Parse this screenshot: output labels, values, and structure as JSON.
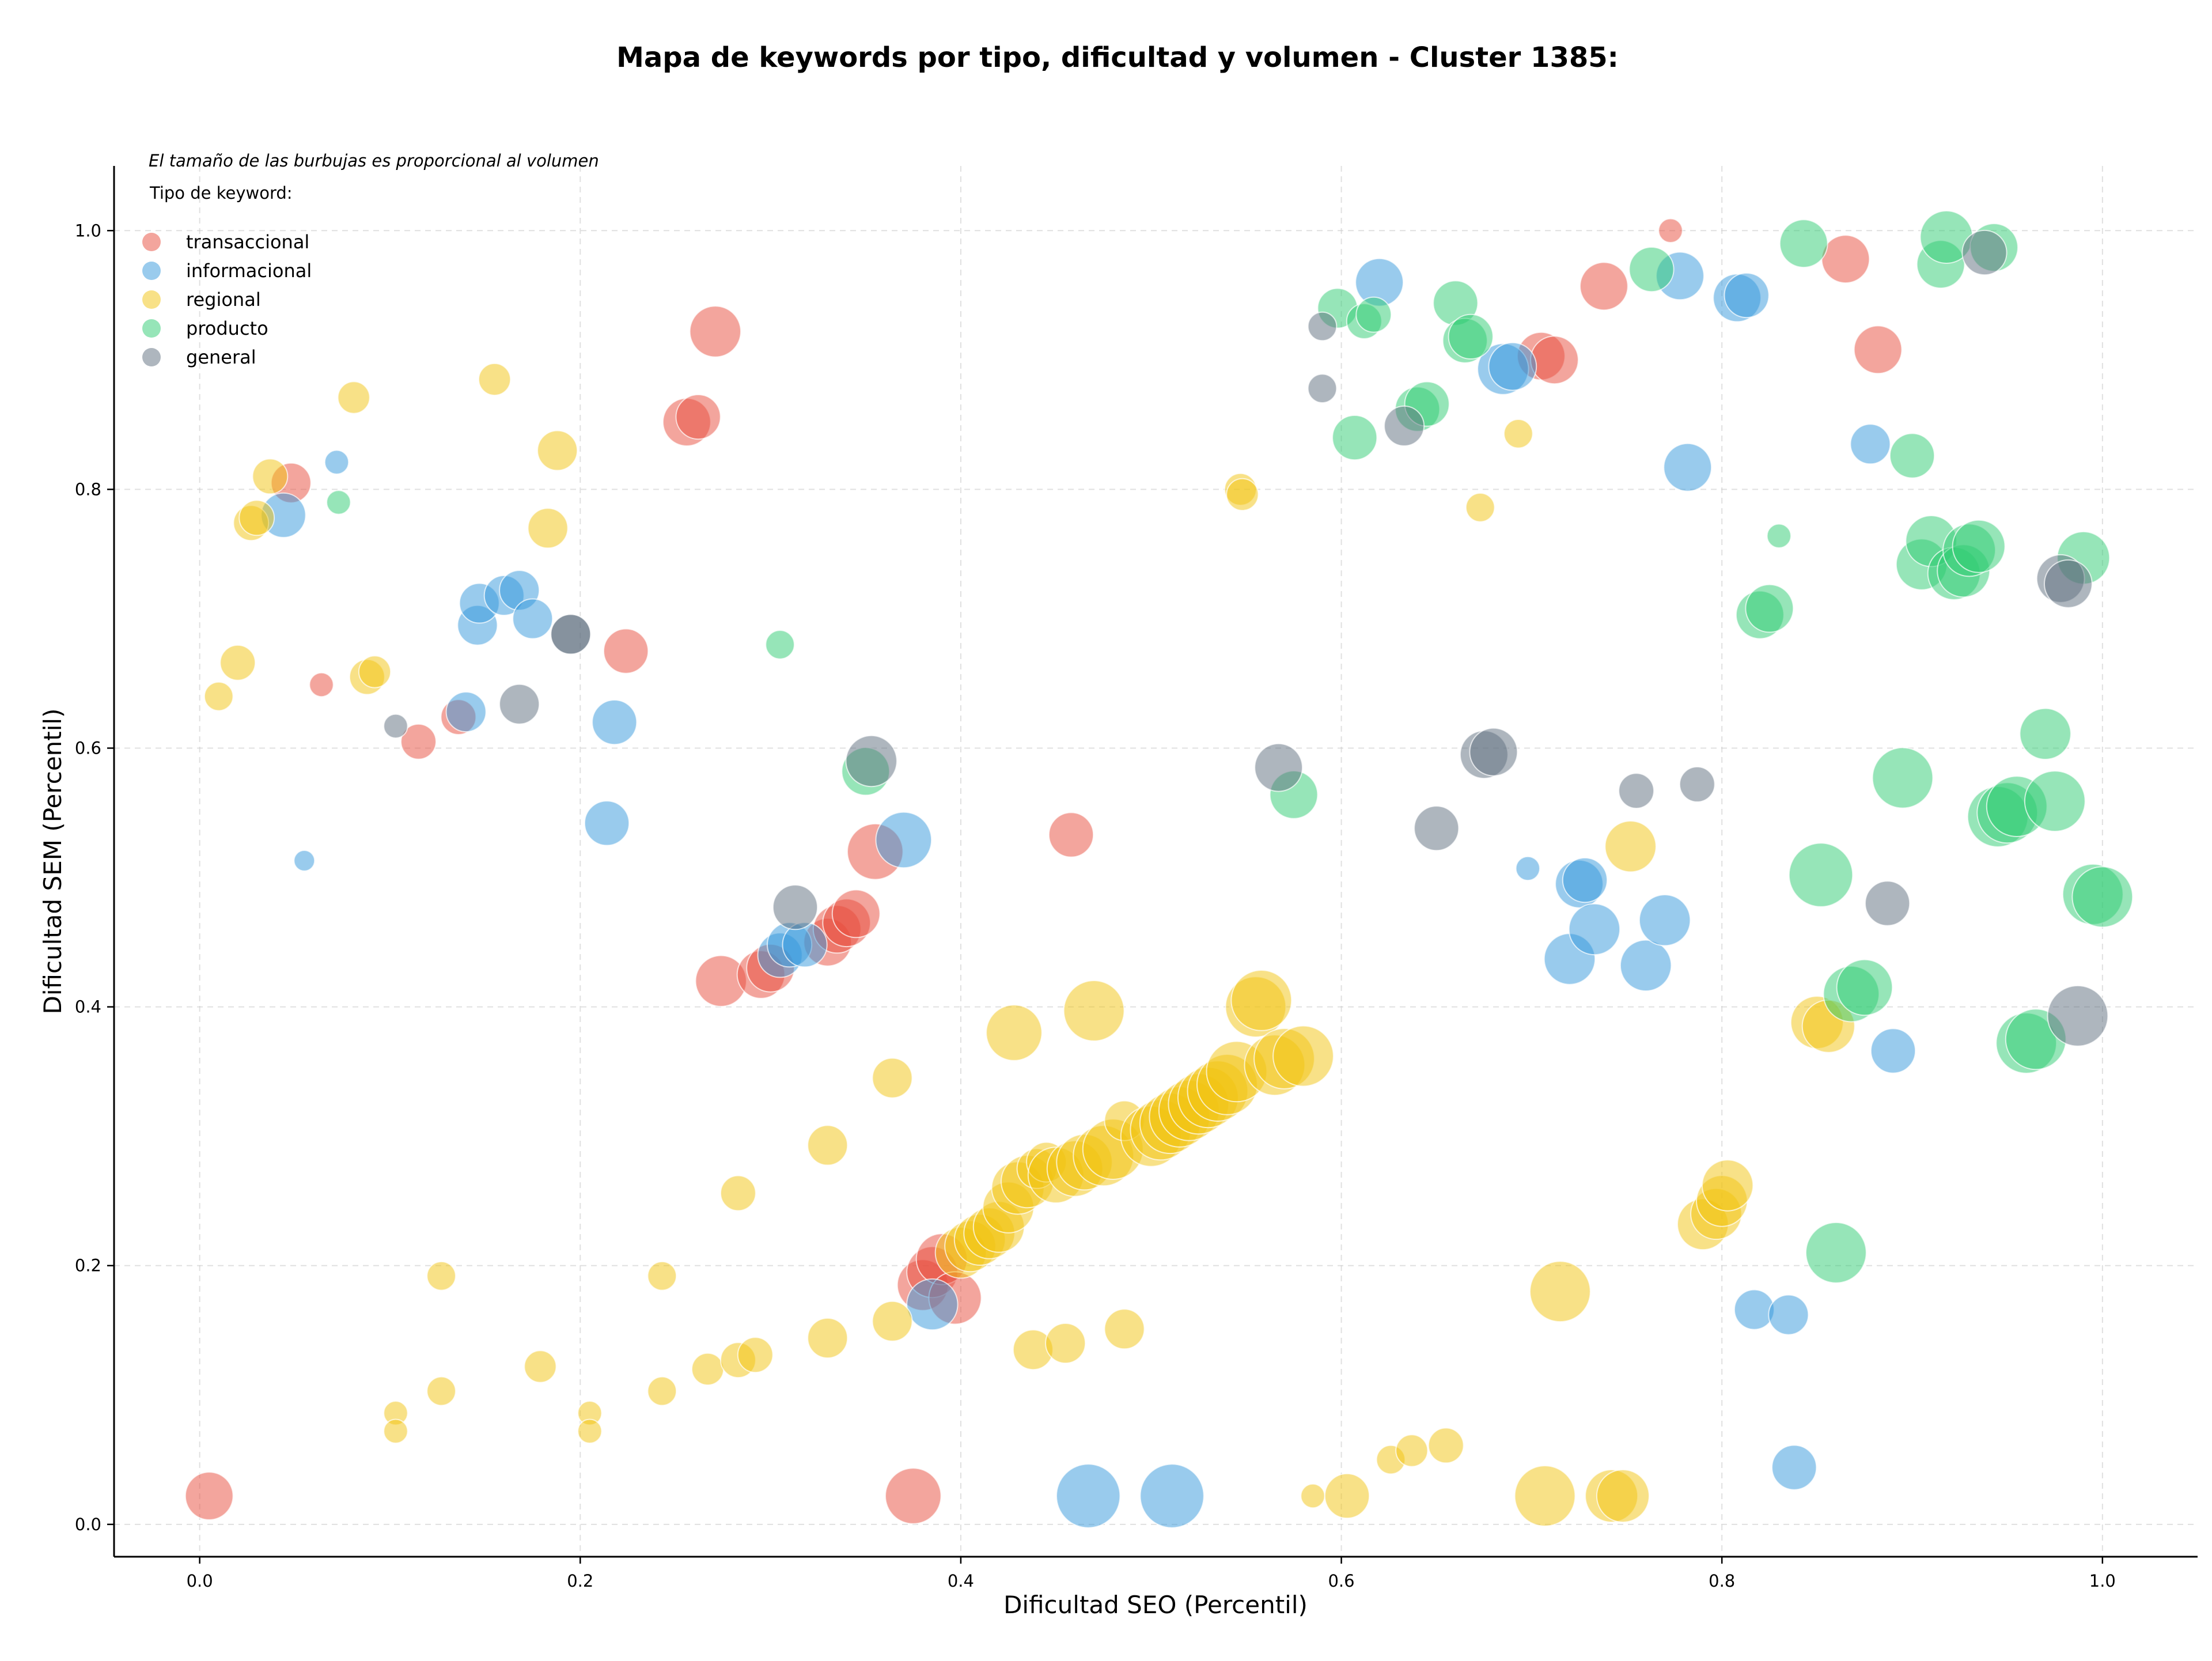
{
  "chart_data": {
    "type": "scatter",
    "title": "Mapa de keywords por tipo, dificultad y volumen - Cluster 1385:",
    "xlabel": "Dificultad SEO (Percentil)",
    "ylabel": "Dificultad SEM (Percentil)",
    "xlim": [
      -0.045,
      1.05
    ],
    "ylim": [
      -0.025,
      1.05
    ],
    "xticks": [
      0.0,
      0.2,
      0.4,
      0.6,
      0.8,
      1.0
    ],
    "yticks": [
      0.0,
      0.2,
      0.4,
      0.6,
      0.8,
      1.0
    ],
    "xtick_labels": [
      "0.0",
      "0.2",
      "0.4",
      "0.6",
      "0.8",
      "1.0"
    ],
    "ytick_labels": [
      "0.0",
      "0.2",
      "0.4",
      "0.6",
      "0.8",
      "1.0"
    ],
    "grid": true,
    "legend": {
      "placement": "top-left",
      "note": "El tamaño de las burbujas es proporcional al volumen",
      "heading": "Tipo de keyword:",
      "entries": [
        "transaccional",
        "informacional",
        "regional",
        "producto",
        "general"
      ]
    },
    "series": [
      {
        "name": "transaccional",
        "color": "#e74c3c",
        "points": [
          [
            0.005,
            0.022,
            30
          ],
          [
            0.048,
            0.805,
            25
          ],
          [
            0.064,
            0.649,
            15
          ],
          [
            0.115,
            0.605,
            22
          ],
          [
            0.136,
            0.624,
            22
          ],
          [
            0.224,
            0.675,
            28
          ],
          [
            0.256,
            0.852,
            30
          ],
          [
            0.262,
            0.856,
            28
          ],
          [
            0.271,
            0.922,
            32
          ],
          [
            0.274,
            0.42,
            32
          ],
          [
            0.295,
            0.425,
            30
          ],
          [
            0.3,
            0.43,
            30
          ],
          [
            0.33,
            0.45,
            30
          ],
          [
            0.335,
            0.46,
            30
          ],
          [
            0.34,
            0.465,
            30
          ],
          [
            0.345,
            0.472,
            30
          ],
          [
            0.355,
            0.52,
            35
          ],
          [
            0.375,
            0.022,
            35
          ],
          [
            0.38,
            0.185,
            32
          ],
          [
            0.385,
            0.195,
            32
          ],
          [
            0.39,
            0.205,
            32
          ],
          [
            0.397,
            0.175,
            33
          ],
          [
            0.458,
            0.533,
            28
          ],
          [
            0.705,
            0.903,
            30
          ],
          [
            0.712,
            0.9,
            30
          ],
          [
            0.738,
            0.957,
            30
          ],
          [
            0.773,
            1.0,
            15
          ],
          [
            0.865,
            0.978,
            30
          ],
          [
            0.882,
            0.908,
            30
          ]
        ]
      },
      {
        "name": "informacional",
        "color": "#3498db",
        "points": [
          [
            0.044,
            0.78,
            28
          ],
          [
            0.055,
            0.513,
            13
          ],
          [
            0.072,
            0.821,
            15
          ],
          [
            0.14,
            0.628,
            25
          ],
          [
            0.146,
            0.695,
            25
          ],
          [
            0.147,
            0.712,
            25
          ],
          [
            0.16,
            0.718,
            25
          ],
          [
            0.168,
            0.722,
            25
          ],
          [
            0.175,
            0.7,
            25
          ],
          [
            0.214,
            0.542,
            28
          ],
          [
            0.218,
            0.62,
            28
          ],
          [
            0.305,
            0.44,
            28
          ],
          [
            0.31,
            0.448,
            28
          ],
          [
            0.318,
            0.448,
            28
          ],
          [
            0.37,
            0.529,
            35
          ],
          [
            0.385,
            0.17,
            32
          ],
          [
            0.467,
            0.022,
            40
          ],
          [
            0.511,
            0.022,
            40
          ],
          [
            0.62,
            0.96,
            30
          ],
          [
            0.685,
            0.893,
            32
          ],
          [
            0.69,
            0.895,
            30
          ],
          [
            0.698,
            0.507,
            15
          ],
          [
            0.72,
            0.437,
            32
          ],
          [
            0.725,
            0.495,
            30
          ],
          [
            0.728,
            0.498,
            28
          ],
          [
            0.733,
            0.46,
            32
          ],
          [
            0.76,
            0.432,
            32
          ],
          [
            0.77,
            0.467,
            32
          ],
          [
            0.778,
            0.965,
            30
          ],
          [
            0.782,
            0.817,
            30
          ],
          [
            0.808,
            0.948,
            30
          ],
          [
            0.813,
            0.95,
            28
          ],
          [
            0.817,
            0.166,
            25
          ],
          [
            0.835,
            0.162,
            25
          ],
          [
            0.838,
            0.044,
            28
          ],
          [
            0.878,
            0.835,
            25
          ],
          [
            0.89,
            0.366,
            28
          ]
        ]
      },
      {
        "name": "regional",
        "color": "#f1c40f",
        "points": [
          [
            0.01,
            0.64,
            18
          ],
          [
            0.02,
            0.666,
            22
          ],
          [
            0.027,
            0.774,
            22
          ],
          [
            0.03,
            0.778,
            22
          ],
          [
            0.037,
            0.81,
            22
          ],
          [
            0.081,
            0.871,
            20
          ],
          [
            0.088,
            0.655,
            22
          ],
          [
            0.092,
            0.659,
            20
          ],
          [
            0.103,
            0.086,
            15
          ],
          [
            0.103,
            0.072,
            15
          ],
          [
            0.127,
            0.192,
            18
          ],
          [
            0.127,
            0.103,
            18
          ],
          [
            0.155,
            0.885,
            20
          ],
          [
            0.179,
            0.122,
            20
          ],
          [
            0.183,
            0.77,
            25
          ],
          [
            0.188,
            0.83,
            25
          ],
          [
            0.205,
            0.086,
            15
          ],
          [
            0.205,
            0.072,
            15
          ],
          [
            0.243,
            0.192,
            18
          ],
          [
            0.243,
            0.103,
            18
          ],
          [
            0.267,
            0.12,
            20
          ],
          [
            0.283,
            0.127,
            22
          ],
          [
            0.283,
            0.256,
            22
          ],
          [
            0.292,
            0.131,
            22
          ],
          [
            0.33,
            0.144,
            25
          ],
          [
            0.33,
            0.293,
            25
          ],
          [
            0.364,
            0.345,
            25
          ],
          [
            0.364,
            0.157,
            25
          ],
          [
            0.4,
            0.21,
            32
          ],
          [
            0.405,
            0.215,
            32
          ],
          [
            0.41,
            0.22,
            32
          ],
          [
            0.415,
            0.225,
            32
          ],
          [
            0.42,
            0.23,
            32
          ],
          [
            0.425,
            0.245,
            32
          ],
          [
            0.428,
            0.38,
            35
          ],
          [
            0.43,
            0.26,
            33
          ],
          [
            0.435,
            0.265,
            33
          ],
          [
            0.438,
            0.135,
            25
          ],
          [
            0.44,
            0.275,
            25
          ],
          [
            0.445,
            0.28,
            25
          ],
          [
            0.45,
            0.27,
            35
          ],
          [
            0.455,
            0.14,
            25
          ],
          [
            0.46,
            0.275,
            35
          ],
          [
            0.465,
            0.28,
            35
          ],
          [
            0.47,
            0.397,
            38
          ],
          [
            0.475,
            0.285,
            38
          ],
          [
            0.48,
            0.29,
            38
          ],
          [
            0.486,
            0.151,
            25
          ],
          [
            0.486,
            0.312,
            25
          ],
          [
            0.5,
            0.3,
            38
          ],
          [
            0.505,
            0.305,
            38
          ],
          [
            0.51,
            0.31,
            38
          ],
          [
            0.515,
            0.315,
            38
          ],
          [
            0.52,
            0.32,
            38
          ],
          [
            0.525,
            0.325,
            38
          ],
          [
            0.53,
            0.33,
            38
          ],
          [
            0.535,
            0.335,
            38
          ],
          [
            0.54,
            0.34,
            38
          ],
          [
            0.545,
            0.35,
            38
          ],
          [
            0.547,
            0.8,
            20
          ],
          [
            0.548,
            0.796,
            20
          ],
          [
            0.555,
            0.4,
            38
          ],
          [
            0.558,
            0.405,
            38
          ],
          [
            0.565,
            0.355,
            38
          ],
          [
            0.57,
            0.36,
            38
          ],
          [
            0.58,
            0.362,
            38
          ],
          [
            0.585,
            0.022,
            15
          ],
          [
            0.603,
            0.022,
            28
          ],
          [
            0.626,
            0.05,
            18
          ],
          [
            0.637,
            0.057,
            20
          ],
          [
            0.655,
            0.061,
            22
          ],
          [
            0.673,
            0.786,
            18
          ],
          [
            0.693,
            0.843,
            18
          ],
          [
            0.707,
            0.022,
            38
          ],
          [
            0.715,
            0.18,
            38
          ],
          [
            0.742,
            0.022,
            33
          ],
          [
            0.748,
            0.022,
            33
          ],
          [
            0.752,
            0.524,
            32
          ],
          [
            0.79,
            0.232,
            32
          ],
          [
            0.797,
            0.24,
            32
          ],
          [
            0.8,
            0.25,
            32
          ],
          [
            0.803,
            0.262,
            32
          ],
          [
            0.85,
            0.388,
            33
          ],
          [
            0.856,
            0.385,
            33
          ]
        ]
      },
      {
        "name": "producto",
        "color": "#2ecc71",
        "points": [
          [
            0.073,
            0.79,
            15
          ],
          [
            0.305,
            0.68,
            18
          ],
          [
            0.35,
            0.582,
            30
          ],
          [
            0.575,
            0.564,
            30
          ],
          [
            0.598,
            0.94,
            25
          ],
          [
            0.607,
            0.84,
            28
          ],
          [
            0.612,
            0.93,
            22
          ],
          [
            0.617,
            0.935,
            22
          ],
          [
            0.64,
            0.862,
            28
          ],
          [
            0.645,
            0.866,
            28
          ],
          [
            0.66,
            0.944,
            28
          ],
          [
            0.665,
            0.915,
            28
          ],
          [
            0.668,
            0.918,
            28
          ],
          [
            0.763,
            0.97,
            28
          ],
          [
            0.83,
            0.764,
            15
          ],
          [
            0.82,
            0.703,
            30
          ],
          [
            0.825,
            0.708,
            30
          ],
          [
            0.843,
            0.99,
            30
          ],
          [
            0.852,
            0.502,
            40
          ],
          [
            0.86,
            0.21,
            38
          ],
          [
            0.868,
            0.41,
            35
          ],
          [
            0.875,
            0.415,
            35
          ],
          [
            0.9,
            0.826,
            28
          ],
          [
            0.895,
            0.577,
            38
          ],
          [
            0.905,
            0.742,
            32
          ],
          [
            0.91,
            0.76,
            32
          ],
          [
            0.915,
            0.974,
            30
          ],
          [
            0.918,
            0.995,
            33
          ],
          [
            0.922,
            0.735,
            33
          ],
          [
            0.927,
            0.737,
            33
          ],
          [
            0.93,
            0.753,
            33
          ],
          [
            0.935,
            0.756,
            33
          ],
          [
            0.943,
            0.987,
            30
          ],
          [
            0.945,
            0.547,
            38
          ],
          [
            0.95,
            0.55,
            38
          ],
          [
            0.955,
            0.555,
            38
          ],
          [
            0.96,
            0.372,
            38
          ],
          [
            0.965,
            0.375,
            38
          ],
          [
            0.97,
            0.611,
            32
          ],
          [
            0.975,
            0.559,
            38
          ],
          [
            0.99,
            0.747,
            33
          ],
          [
            0.995,
            0.487,
            38
          ],
          [
            1.0,
            0.485,
            38
          ]
        ]
      },
      {
        "name": "general",
        "color": "#5d6d7e",
        "points": [
          [
            0.103,
            0.617,
            15
          ],
          [
            0.168,
            0.634,
            25
          ],
          [
            0.195,
            0.688,
            25
          ],
          [
            0.195,
            0.688,
            25
          ],
          [
            0.313,
            0.477,
            28
          ],
          [
            0.353,
            0.59,
            32
          ],
          [
            0.567,
            0.585,
            30
          ],
          [
            0.59,
            0.926,
            18
          ],
          [
            0.59,
            0.878,
            18
          ],
          [
            0.633,
            0.849,
            25
          ],
          [
            0.65,
            0.538,
            28
          ],
          [
            0.675,
            0.595,
            30
          ],
          [
            0.68,
            0.597,
            30
          ],
          [
            0.755,
            0.567,
            22
          ],
          [
            0.787,
            0.572,
            22
          ],
          [
            0.887,
            0.48,
            28
          ],
          [
            0.938,
            0.983,
            28
          ],
          [
            0.978,
            0.731,
            30
          ],
          [
            0.982,
            0.727,
            30
          ],
          [
            0.987,
            0.393,
            38
          ]
        ]
      }
    ]
  }
}
